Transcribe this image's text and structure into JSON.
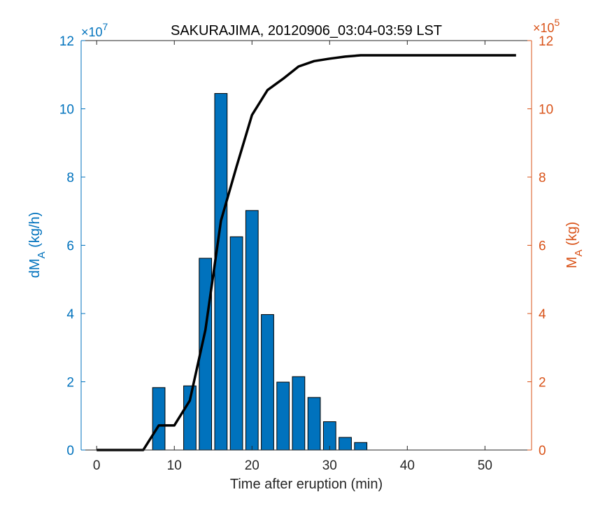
{
  "chart_data": {
    "type": "bar",
    "title": "SAKURAJIMA, 20120906_03:04-03:59 LST",
    "xlabel": "Time after eruption (min)",
    "xlim": [
      -2,
      56
    ],
    "xticks": [
      0,
      10,
      20,
      30,
      40,
      50
    ],
    "grid": false,
    "colors": {
      "bar": "#0072BD",
      "left_axis": "#0072BD",
      "right_axis": "#D95319",
      "line": "#000000",
      "frame": "#262626"
    },
    "left_axis": {
      "label_main": "dM",
      "label_sub": "A",
      "label_unit": " (kg/h)",
      "exponent_base": "×10",
      "exponent_power": "7",
      "ylim": [
        0,
        12
      ],
      "ticks": [
        0,
        2,
        4,
        6,
        8,
        10,
        12
      ]
    },
    "right_axis": {
      "label_main": "M",
      "label_sub": "A",
      "label_unit": " (kg)",
      "exponent_base": "×10",
      "exponent_power": "5",
      "ylim": [
        0,
        12
      ],
      "ticks": [
        0,
        2,
        4,
        6,
        8,
        10,
        12
      ]
    },
    "series": [
      {
        "type": "bar",
        "axis": "left",
        "x": [
          8,
          12,
          14,
          16,
          18,
          20,
          22,
          24,
          26,
          28,
          30,
          32,
          34
        ],
        "values": [
          1.83,
          1.88,
          5.62,
          10.45,
          6.25,
          7.02,
          3.97,
          1.99,
          2.15,
          1.54,
          0.83,
          0.37,
          0.22
        ]
      },
      {
        "type": "line",
        "axis": "right",
        "x": [
          0,
          6,
          8,
          10,
          12,
          14,
          16,
          18,
          20,
          22,
          24,
          26,
          28,
          30,
          32,
          34,
          36,
          54
        ],
        "values": [
          0,
          0,
          0.72,
          0.72,
          1.45,
          3.52,
          6.72,
          8.3,
          9.82,
          10.55,
          10.88,
          11.24,
          11.4,
          11.47,
          11.53,
          11.57,
          11.57,
          11.57
        ]
      }
    ]
  }
}
